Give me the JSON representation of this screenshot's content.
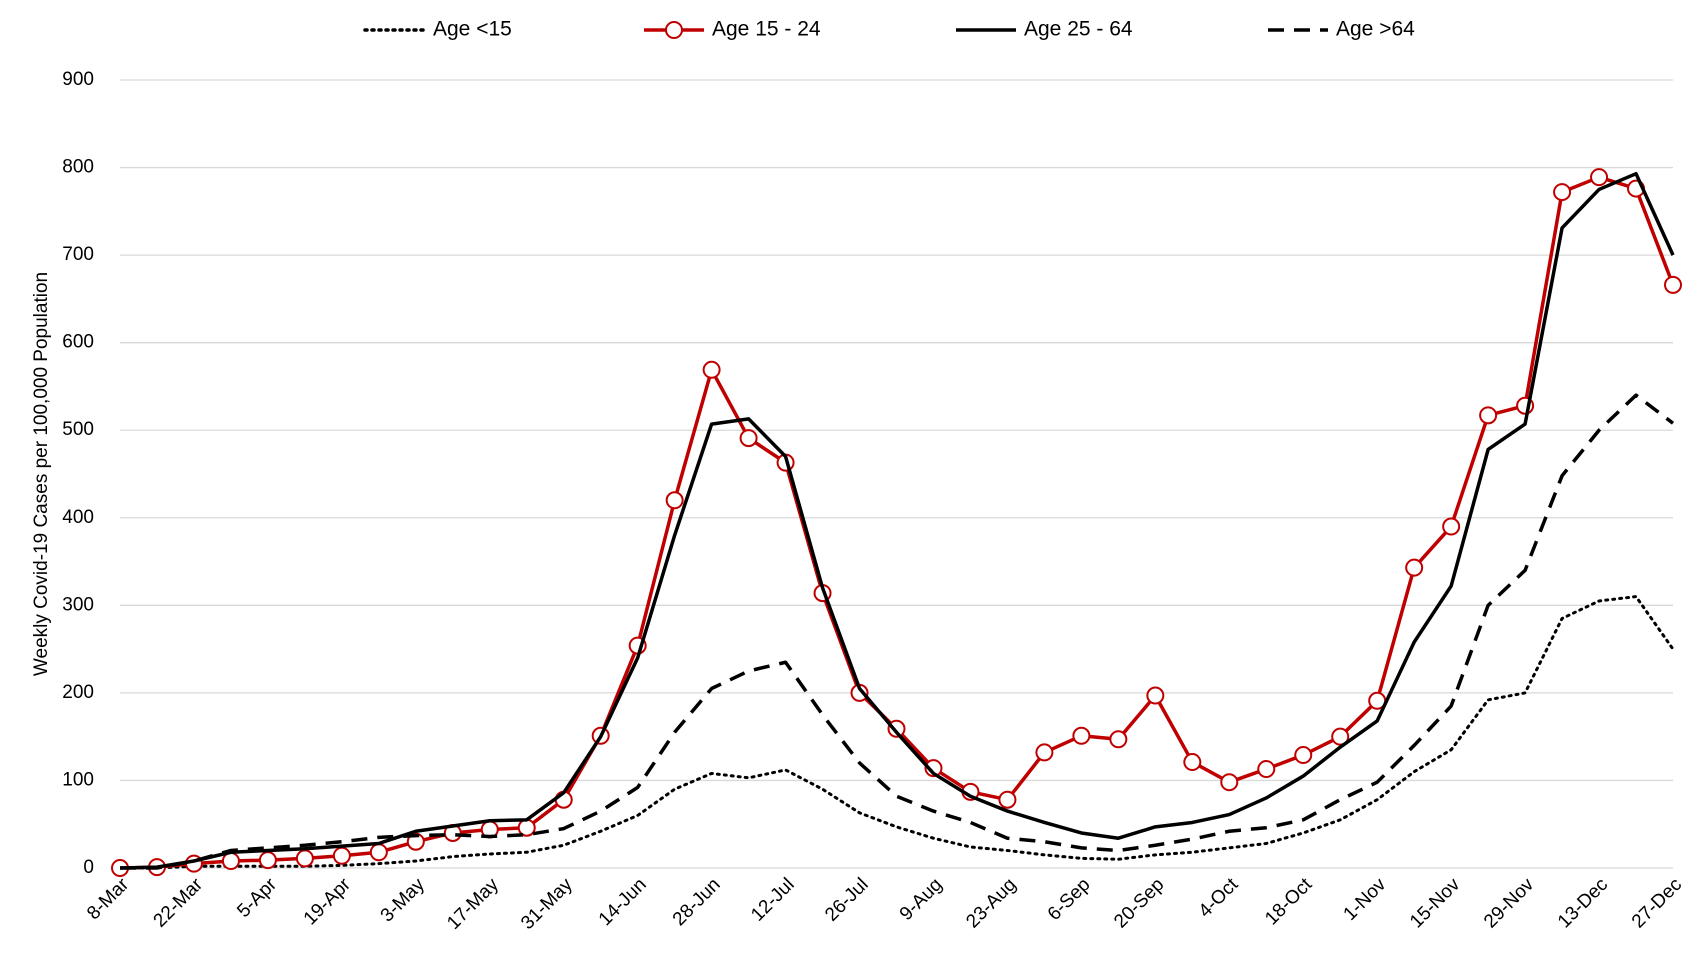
{
  "chart_data": {
    "type": "line",
    "y_label": "Weekly Covid-19 Cases per 100,000 Population",
    "categories": [
      "8-Mar",
      null,
      "22-Mar",
      null,
      "5-Apr",
      null,
      "19-Apr",
      null,
      "3-May",
      null,
      "17-May",
      null,
      "31-May",
      null,
      "14-Jun",
      null,
      "28-Jun",
      null,
      "12-Jul",
      null,
      "26-Jul",
      null,
      "9-Aug",
      null,
      "23-Aug",
      null,
      "6-Sep",
      null,
      "20-Sep",
      null,
      "4-Oct",
      null,
      "18-Oct",
      null,
      "1-Nov",
      null,
      "15-Nov",
      null,
      "29-Nov",
      null,
      "13-Dec",
      null,
      "27-Dec"
    ],
    "ylim": [
      0,
      900
    ],
    "yticks": [
      0,
      100,
      200,
      300,
      400,
      500,
      600,
      700,
      800,
      900
    ],
    "grid": true,
    "legend": "top",
    "series": [
      {
        "name": "Age <15",
        "color": "#000000",
        "style": "dotted",
        "values": [
          0,
          0,
          2,
          2,
          2,
          2,
          3,
          5,
          8,
          13,
          16,
          18,
          26,
          42,
          60,
          90,
          108,
          103,
          112,
          90,
          63,
          47,
          34,
          24,
          20,
          15,
          11,
          10,
          15,
          18,
          23,
          28,
          40,
          55,
          78,
          110,
          135,
          192,
          200,
          285,
          305,
          310,
          250
        ]
      },
      {
        "name": "Age 15 - 24",
        "color": "#c00000",
        "style": "marker",
        "values": [
          0,
          1,
          5,
          8,
          9,
          11,
          14,
          18,
          30,
          40,
          44,
          46,
          78,
          151,
          254,
          420,
          569,
          491,
          463,
          314,
          200,
          159,
          114,
          87,
          78,
          132,
          151,
          147,
          197,
          121,
          98,
          113,
          129,
          150,
          191,
          343,
          390,
          517,
          528,
          772,
          789,
          776,
          666
        ]
      },
      {
        "name": "Age 25 - 64",
        "color": "#000000",
        "style": "solid",
        "values": [
          0,
          1,
          8,
          18,
          20,
          22,
          25,
          28,
          42,
          48,
          54,
          55,
          86,
          150,
          240,
          380,
          507,
          513,
          470,
          320,
          205,
          155,
          108,
          82,
          65,
          52,
          40,
          34,
          47,
          52,
          61,
          80,
          105,
          138,
          168,
          258,
          322,
          478,
          507,
          731,
          775,
          793,
          700
        ]
      },
      {
        "name": "Age >64",
        "color": "#000000",
        "style": "dashed",
        "values": [
          0,
          0,
          8,
          20,
          23,
          26,
          30,
          35,
          37,
          38,
          36,
          38,
          45,
          65,
          92,
          155,
          205,
          225,
          235,
          175,
          120,
          82,
          65,
          52,
          34,
          30,
          23,
          20,
          26,
          33,
          42,
          46,
          55,
          78,
          98,
          140,
          185,
          300,
          340,
          448,
          500,
          540,
          508
        ]
      }
    ]
  }
}
